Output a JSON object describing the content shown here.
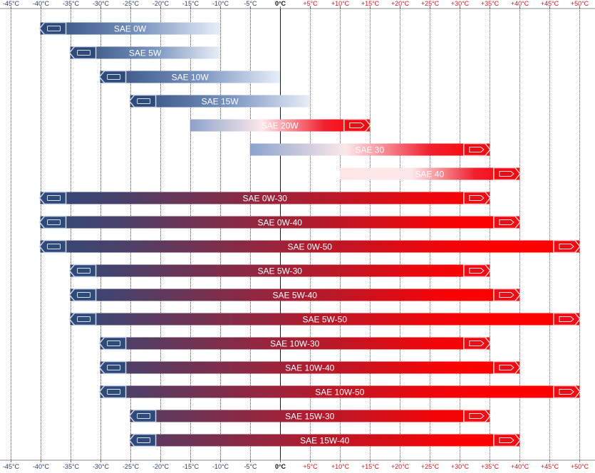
{
  "chart_data": {
    "type": "bar",
    "orientation": "horizontal-range",
    "title": "",
    "xlabel": "",
    "ylabel": "",
    "xlim": [
      -47.5,
      52.5
    ],
    "x_ticks": [
      -45,
      -40,
      -35,
      -30,
      -25,
      -20,
      -15,
      -10,
      -5,
      0,
      5,
      10,
      15,
      20,
      25,
      30,
      35,
      40,
      45,
      50
    ],
    "tick_labels": [
      "-45°C",
      "-40°C",
      "-35°C",
      "-30°C",
      "-25°C",
      "-20°C",
      "-15°C",
      "-10°C",
      "-5°C",
      "0°C",
      "+5°C",
      "+10°C",
      "+15°C",
      "+20°C",
      "+25°C",
      "+30°C",
      "+35°C",
      "+40°C",
      "+45°C",
      "+50°C"
    ],
    "grid": true,
    "colors": {
      "cold": "#2e4a7a",
      "hot": "#ff0000",
      "grid_cold": "#2e4a7a",
      "grid_hot": "#e0202a",
      "zero_line": "#1a1a1a"
    },
    "series": [
      {
        "name": "SAE 0W",
        "values": [
          -40,
          -10
        ],
        "arrow_left": true,
        "arrow_right": false
      },
      {
        "name": "SAE 5W",
        "values": [
          -35,
          -10
        ],
        "arrow_left": true,
        "arrow_right": false
      },
      {
        "name": "SAE 10W",
        "values": [
          -30,
          0
        ],
        "arrow_left": true,
        "arrow_right": false
      },
      {
        "name": "SAE 15W",
        "values": [
          -25,
          5
        ],
        "arrow_left": true,
        "arrow_right": false
      },
      {
        "name": "SAE 20W",
        "values": [
          -15,
          15
        ],
        "arrow_left": false,
        "arrow_right": true
      },
      {
        "name": "SAE 30",
        "values": [
          -5,
          35
        ],
        "arrow_left": false,
        "arrow_right": true
      },
      {
        "name": "SAE 40",
        "values": [
          10,
          40
        ],
        "arrow_left": false,
        "arrow_right": true
      },
      {
        "name": "SAE 0W-30",
        "values": [
          -40,
          35
        ],
        "arrow_left": true,
        "arrow_right": true
      },
      {
        "name": "SAE 0W-40",
        "values": [
          -40,
          40
        ],
        "arrow_left": true,
        "arrow_right": true
      },
      {
        "name": "SAE 0W-50",
        "values": [
          -40,
          50
        ],
        "arrow_left": true,
        "arrow_right": true
      },
      {
        "name": "SAE 5W-30",
        "values": [
          -35,
          35
        ],
        "arrow_left": true,
        "arrow_right": true
      },
      {
        "name": "SAE 5W-40",
        "values": [
          -35,
          40
        ],
        "arrow_left": true,
        "arrow_right": true
      },
      {
        "name": "SAE 5W-50",
        "values": [
          -35,
          50
        ],
        "arrow_left": true,
        "arrow_right": true
      },
      {
        "name": "SAE 10W-30",
        "values": [
          -30,
          35
        ],
        "arrow_left": true,
        "arrow_right": true
      },
      {
        "name": "SAE 10W-40",
        "values": [
          -30,
          40
        ],
        "arrow_left": true,
        "arrow_right": true
      },
      {
        "name": "SAE 10W-50",
        "values": [
          -30,
          50
        ],
        "arrow_left": true,
        "arrow_right": true
      },
      {
        "name": "SAE 15W-30",
        "values": [
          -25,
          35
        ],
        "arrow_left": true,
        "arrow_right": true
      },
      {
        "name": "SAE 15W-40",
        "values": [
          -25,
          40
        ],
        "arrow_left": true,
        "arrow_right": true
      }
    ]
  }
}
